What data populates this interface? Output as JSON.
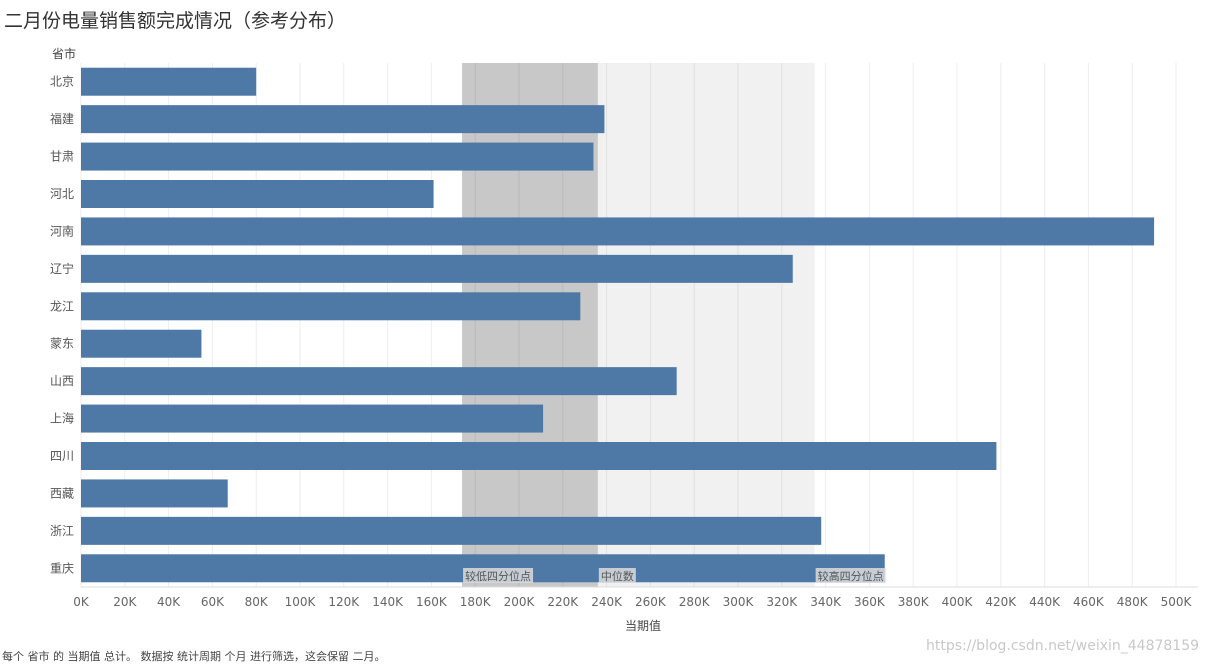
{
  "header": {
    "title": "二月份电量销售额完成情况（参考分布）"
  },
  "footer": {
    "caption": "每个 省市 的 当期值 总计。 数据按 统计周期 个月 进行筛选，这会保留 二月。",
    "watermark": "https://blog.csdn.net/weixin_44878159"
  },
  "chart_data": {
    "type": "bar",
    "orientation": "horizontal",
    "title": "二月份电量销售额完成情况（参考分布）",
    "xlabel": "当期值",
    "ylabel": "省市",
    "xlim": [
      0,
      510000
    ],
    "xticks": [
      0,
      20000,
      40000,
      60000,
      80000,
      100000,
      120000,
      140000,
      160000,
      180000,
      200000,
      220000,
      240000,
      260000,
      280000,
      300000,
      320000,
      340000,
      360000,
      380000,
      400000,
      420000,
      440000,
      460000,
      480000,
      500000
    ],
    "xtick_labels": [
      "0K",
      "20K",
      "40K",
      "60K",
      "80K",
      "100K",
      "120K",
      "140K",
      "160K",
      "180K",
      "200K",
      "220K",
      "240K",
      "260K",
      "280K",
      "300K",
      "320K",
      "340K",
      "360K",
      "380K",
      "400K",
      "420K",
      "440K",
      "460K",
      "480K",
      "500K"
    ],
    "categories": [
      "北京",
      "福建",
      "甘肃",
      "河北",
      "河南",
      "辽宁",
      "龙江",
      "蒙东",
      "山西",
      "上海",
      "四川",
      "西藏",
      "浙江",
      "重庆"
    ],
    "values": [
      80000,
      239000,
      234000,
      161000,
      490000,
      325000,
      228000,
      55000,
      272000,
      211000,
      418000,
      67000,
      338000,
      367000
    ],
    "bar_color": "#4e79a7",
    "reference_distribution": {
      "lower_quartile": {
        "label": "较低四分位点",
        "value": 174000
      },
      "median": {
        "label": "中位数",
        "value": 236000
      },
      "upper_quartile": {
        "label": "较高四分位点",
        "value": 335000
      },
      "inner_band_color": "#c8c8c8",
      "outer_band_color": "#f1f1f1"
    },
    "grid": true
  }
}
